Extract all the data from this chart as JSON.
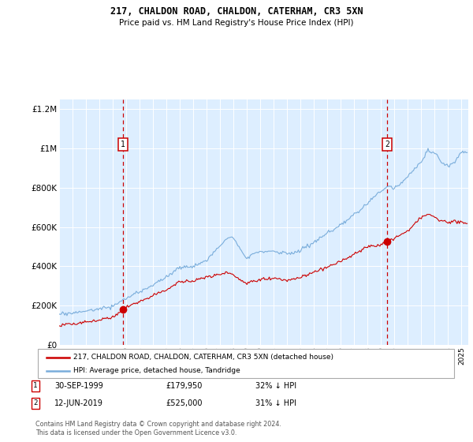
{
  "title": "217, CHALDON ROAD, CHALDON, CATERHAM, CR3 5XN",
  "subtitle": "Price paid vs. HM Land Registry's House Price Index (HPI)",
  "ylim": [
    0,
    1250000
  ],
  "xlim": [
    1995.0,
    2025.5
  ],
  "yticks": [
    0,
    200000,
    400000,
    600000,
    800000,
    1000000,
    1200000
  ],
  "ytick_labels": [
    "£0",
    "£200K",
    "£400K",
    "£600K",
    "£800K",
    "£1M",
    "£1.2M"
  ],
  "background_color": "#ffffff",
  "plot_bg_color": "#ddeeff",
  "sale1_year": 1999.75,
  "sale1_price": 179950,
  "sale2_year": 2019.45,
  "sale2_price": 525000,
  "red_color": "#cc0000",
  "blue_color": "#7aaddb",
  "legend1": "217, CHALDON ROAD, CHALDON, CATERHAM, CR3 5XN (detached house)",
  "legend2": "HPI: Average price, detached house, Tandridge",
  "footer": "Contains HM Land Registry data © Crown copyright and database right 2024.\nThis data is licensed under the Open Government Licence v3.0."
}
